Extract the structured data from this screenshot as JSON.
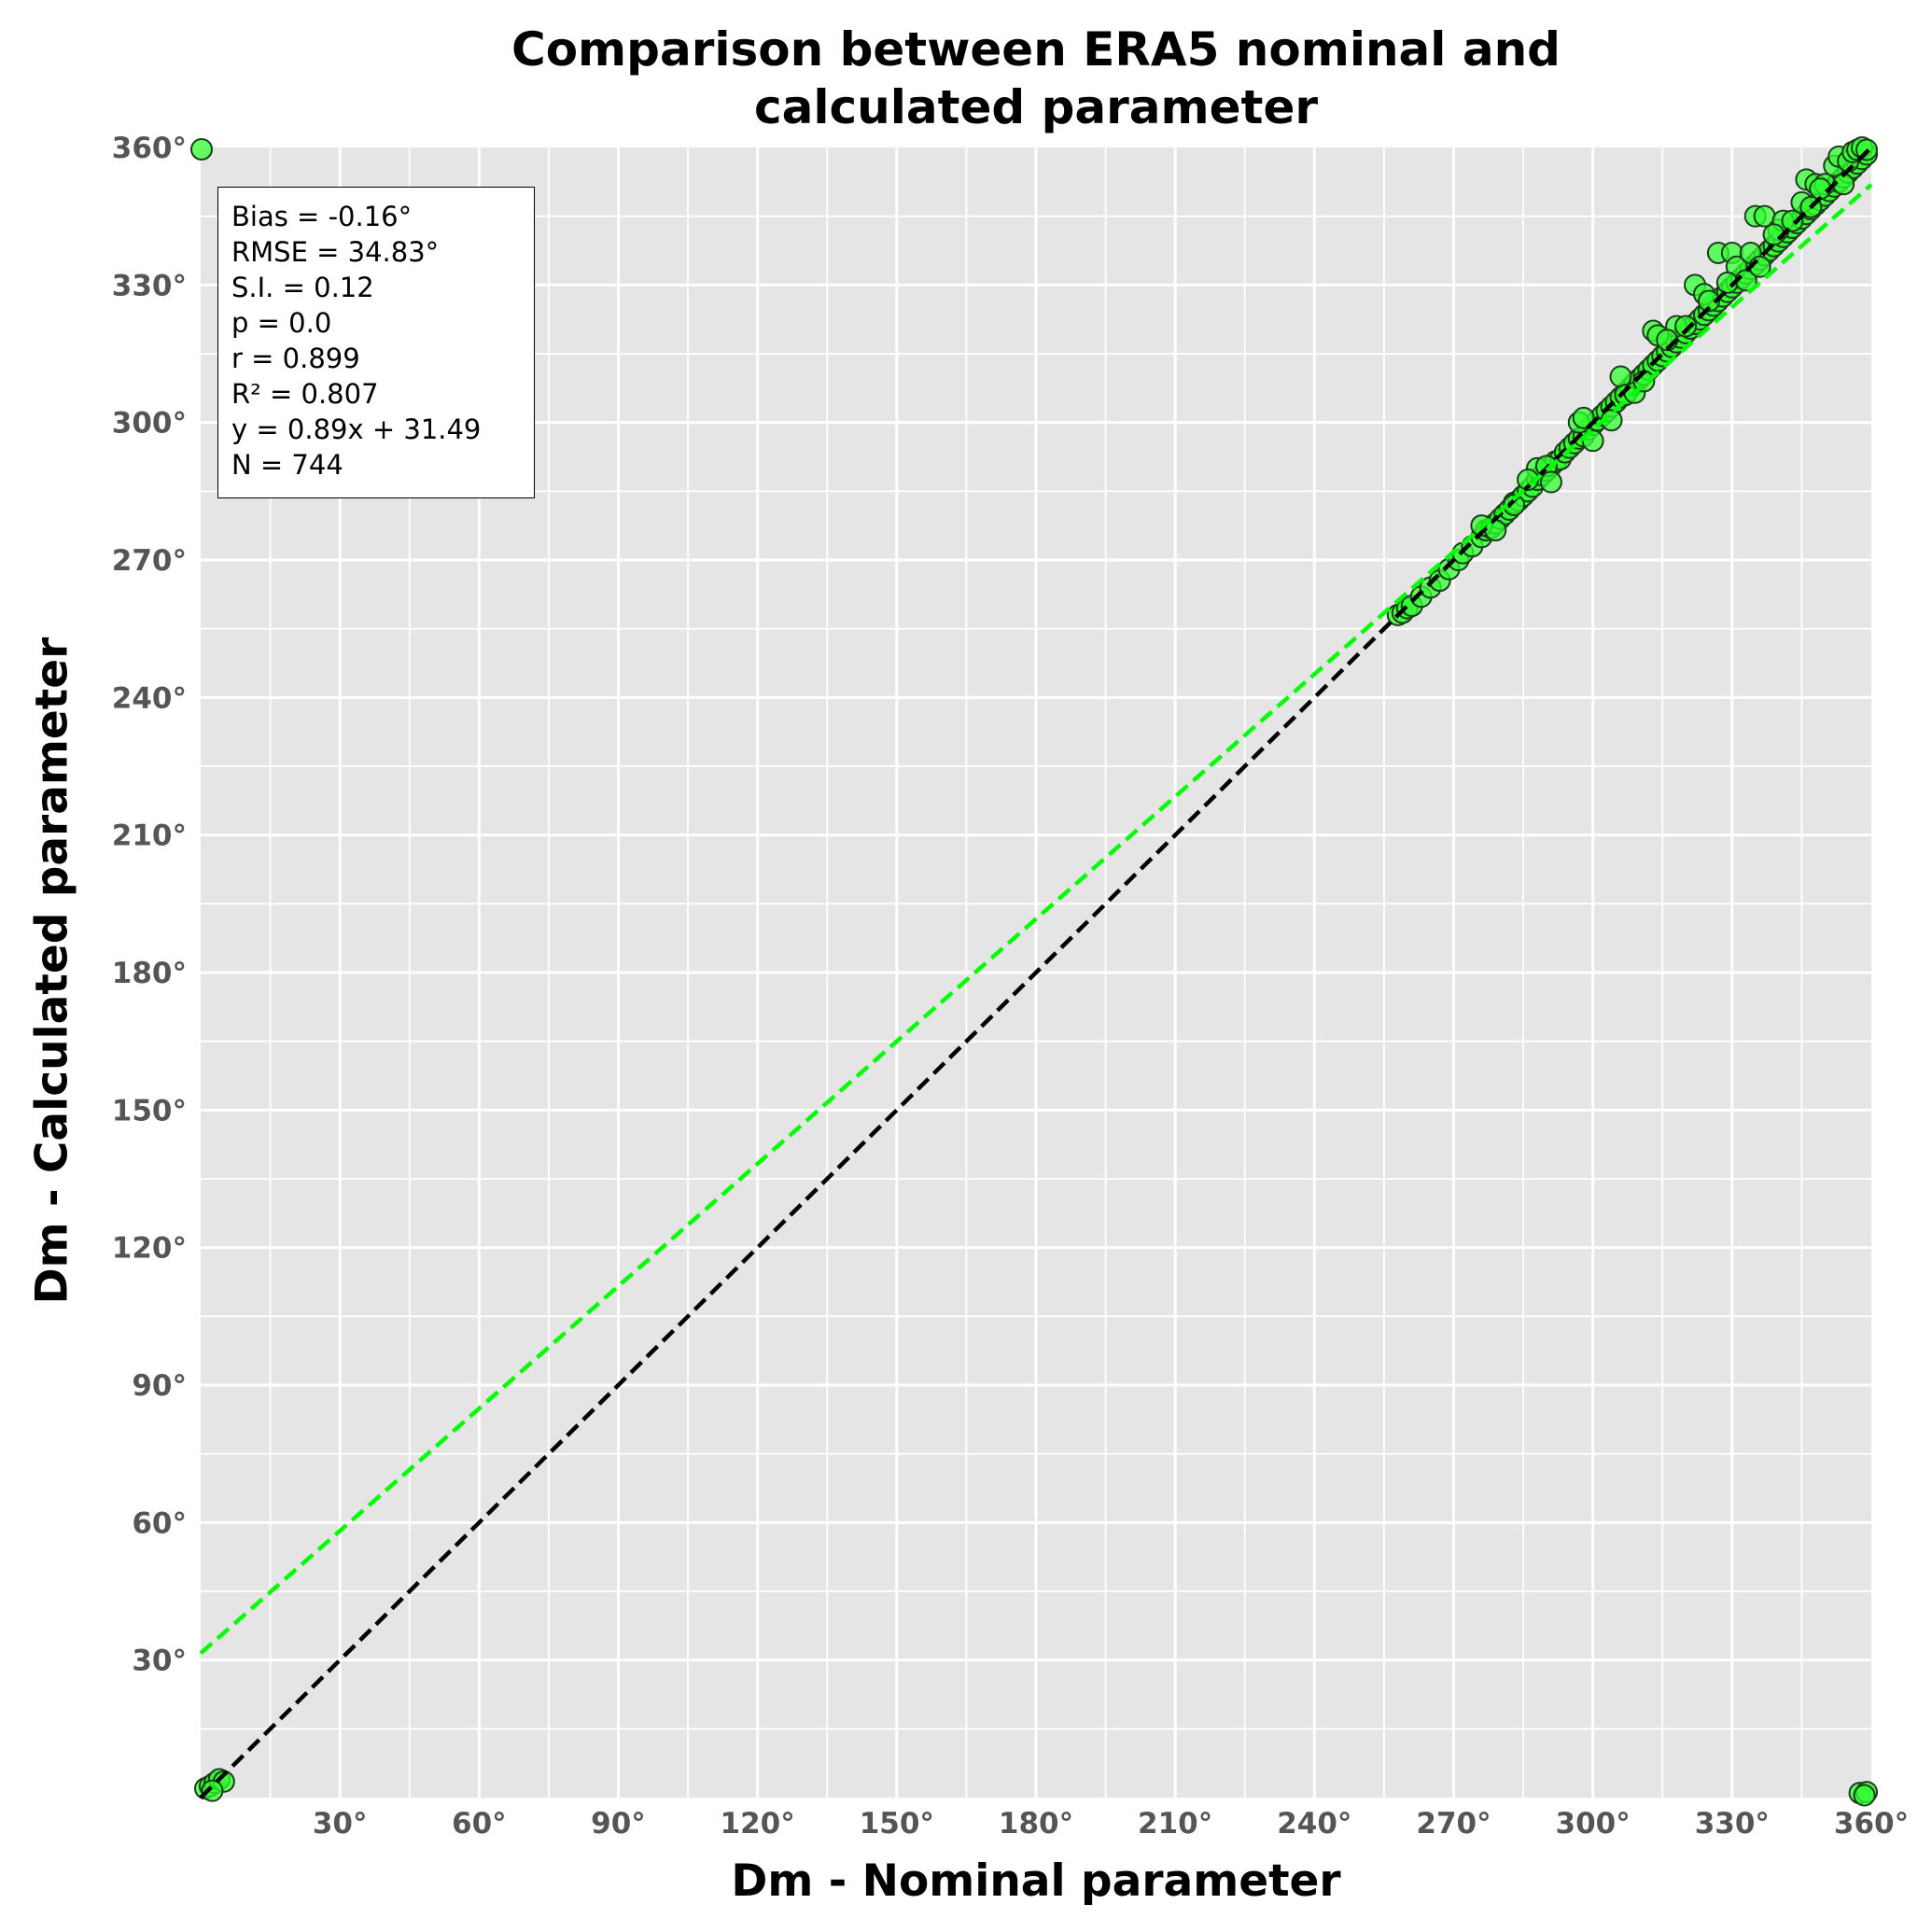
{
  "chart_data": {
    "type": "scatter",
    "title": "Comparison between ERA5 nominal and\ncalculated parameter",
    "xlabel": "Dm - Nominal parameter",
    "ylabel": "Dm - Calculated parameter",
    "xlim": [
      0,
      360
    ],
    "ylim": [
      0,
      360
    ],
    "grid": true,
    "x_ticks": [
      30,
      60,
      90,
      120,
      150,
      180,
      210,
      240,
      270,
      300,
      330,
      360
    ],
    "y_ticks": [
      30,
      60,
      90,
      120,
      150,
      180,
      210,
      240,
      270,
      300,
      330,
      360
    ],
    "x_tick_labels": [
      "30°",
      "60°",
      "90°",
      "120°",
      "150°",
      "180°",
      "210°",
      "240°",
      "270°",
      "300°",
      "330°",
      "360°"
    ],
    "y_tick_labels": [
      "30°",
      "60°",
      "90°",
      "120°",
      "150°",
      "180°",
      "210°",
      "240°",
      "270°",
      "300°",
      "330°",
      "360°"
    ],
    "stats": [
      "Bias = -0.16°",
      "RMSE = 34.83°",
      "S.I. = 0.12",
      "p = 0.0",
      "r = 0.899",
      "R² = 0.807",
      "y = 0.89x + 31.49",
      "N = 744"
    ],
    "lines": [
      {
        "style": "dashed",
        "color": "#000000",
        "slope": 1,
        "intercept": 0
      },
      {
        "style": "dashed",
        "color": "#00ff00",
        "slope": 0.89,
        "intercept": 31.49
      }
    ],
    "series": [
      {
        "marker_color": "#33ff33",
        "edge_color": "#1a3d1a",
        "points": [
          [
            0.2,
            359.6
          ],
          [
            1.0,
            2.0
          ],
          [
            2.0,
            2.5
          ],
          [
            3.0,
            3.2
          ],
          [
            4.0,
            4.0
          ],
          [
            5.0,
            3.5
          ],
          [
            2.5,
            1.5
          ],
          [
            258,
            258
          ],
          [
            259,
            258.5
          ],
          [
            260,
            259.5
          ],
          [
            261,
            260
          ],
          [
            263,
            262
          ],
          [
            265,
            264
          ],
          [
            267,
            265.5
          ],
          [
            269,
            268
          ],
          [
            271,
            270
          ],
          [
            272,
            271.5
          ],
          [
            274,
            273
          ],
          [
            276,
            275
          ],
          [
            277,
            276.5
          ],
          [
            278,
            277
          ],
          [
            279,
            278
          ],
          [
            280,
            279
          ],
          [
            281,
            280
          ],
          [
            282,
            281
          ],
          [
            283,
            282.5
          ],
          [
            284,
            283
          ],
          [
            285,
            284
          ],
          [
            286,
            285
          ],
          [
            287,
            286
          ],
          [
            288,
            287.5
          ],
          [
            289,
            288.5
          ],
          [
            290,
            289.5
          ],
          [
            291,
            290.5
          ],
          [
            292,
            291.5
          ],
          [
            293,
            292
          ],
          [
            294,
            293.5
          ],
          [
            295,
            294.5
          ],
          [
            296,
            295.5
          ],
          [
            297,
            296.5
          ],
          [
            298,
            297
          ],
          [
            299,
            298.5
          ],
          [
            300,
            299.5
          ],
          [
            301,
            300.5
          ],
          [
            302,
            301.5
          ],
          [
            303,
            302.5
          ],
          [
            304,
            303.5
          ],
          [
            305,
            304.5
          ],
          [
            306,
            305.5
          ],
          [
            307,
            306.5
          ],
          [
            308,
            307.5
          ],
          [
            309,
            308.5
          ],
          [
            310,
            309.5
          ],
          [
            311,
            310.5
          ],
          [
            312,
            311.5
          ],
          [
            313,
            312.5
          ],
          [
            314,
            313.5
          ],
          [
            315,
            314.5
          ],
          [
            316,
            315.5
          ],
          [
            317,
            316.5
          ],
          [
            318,
            317.5
          ],
          [
            319,
            318.5
          ],
          [
            320,
            319.5
          ],
          [
            321,
            320.5
          ],
          [
            322,
            321.5
          ],
          [
            323,
            322.5
          ],
          [
            324,
            323.5
          ],
          [
            325,
            324.5
          ],
          [
            326,
            325.5
          ],
          [
            327,
            326.5
          ],
          [
            328,
            327.5
          ],
          [
            329,
            328.5
          ],
          [
            330,
            329.5
          ],
          [
            331,
            330.5
          ],
          [
            332,
            331.5
          ],
          [
            333,
            332.5
          ],
          [
            334,
            333.5
          ],
          [
            335,
            334.5
          ],
          [
            336,
            335.5
          ],
          [
            337,
            336.5
          ],
          [
            338,
            337.5
          ],
          [
            339,
            338.5
          ],
          [
            340,
            339.5
          ],
          [
            341,
            340.5
          ],
          [
            342,
            341.5
          ],
          [
            343,
            342.5
          ],
          [
            344,
            343.5
          ],
          [
            345,
            344.5
          ],
          [
            346,
            345.5
          ],
          [
            347,
            346.5
          ],
          [
            348,
            347.5
          ],
          [
            349,
            348.5
          ],
          [
            350,
            349.5
          ],
          [
            351,
            350.5
          ],
          [
            352,
            351.5
          ],
          [
            353,
            352.5
          ],
          [
            354,
            353.5
          ],
          [
            355,
            354.5
          ],
          [
            356,
            355.5
          ],
          [
            357,
            356.5
          ],
          [
            358,
            357.5
          ],
          [
            359,
            358.5
          ],
          [
            283,
            282
          ],
          [
            288,
            290
          ],
          [
            290,
            290.5
          ],
          [
            291,
            287
          ],
          [
            297,
            300
          ],
          [
            300,
            296
          ],
          [
            304,
            300.5
          ],
          [
            306,
            310
          ],
          [
            307,
            306
          ],
          [
            309,
            306.5
          ],
          [
            313,
            320
          ],
          [
            314,
            319
          ],
          [
            318,
            321
          ],
          [
            322,
            330
          ],
          [
            324,
            328
          ],
          [
            327,
            337
          ],
          [
            330,
            337
          ],
          [
            331,
            334
          ],
          [
            334,
            337
          ],
          [
            335,
            345
          ],
          [
            337,
            345
          ],
          [
            340,
            342
          ],
          [
            341,
            344
          ],
          [
            345,
            348
          ],
          [
            346,
            353
          ],
          [
            347,
            347
          ],
          [
            348,
            352
          ],
          [
            350,
            352
          ],
          [
            352,
            356
          ],
          [
            353,
            358
          ],
          [
            354,
            352
          ],
          [
            355,
            357
          ],
          [
            356,
            359
          ],
          [
            357,
            359.5
          ],
          [
            358,
            360
          ],
          [
            359,
            359.5
          ],
          [
            276,
            277.5
          ],
          [
            279,
            276.5
          ],
          [
            286,
            287.5
          ],
          [
            298,
            301
          ],
          [
            311,
            309
          ],
          [
            316,
            318
          ],
          [
            320,
            321
          ],
          [
            325,
            326.5
          ],
          [
            329,
            330.5
          ],
          [
            333,
            331
          ],
          [
            336,
            334
          ],
          [
            339,
            341
          ],
          [
            343,
            344
          ],
          [
            349,
            351
          ],
          [
            357.5,
            1.0
          ],
          [
            359.0,
            1.2
          ],
          [
            358.5,
            0.5
          ]
        ]
      }
    ]
  }
}
